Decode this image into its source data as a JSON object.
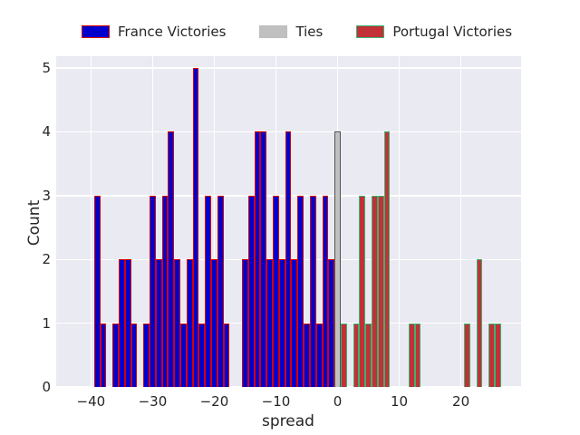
{
  "colors": {
    "figure_bg": "#ffffff",
    "axes_bg": "#eaeaf2",
    "grid": "#ffffff",
    "text": "#262626"
  },
  "legend": {
    "items": [
      {
        "label": "France Victories",
        "fill": "#0000cd",
        "edge": "#d60000"
      },
      {
        "label": "Ties",
        "fill": "#c0c0c0",
        "edge": "#bdbdbd"
      },
      {
        "label": "Portugal Victories",
        "fill": "#c13137",
        "edge": "#3cb371"
      }
    ]
  },
  "chart_data": {
    "type": "bar",
    "subtype": "histogram",
    "title": "",
    "xlabel": "spread",
    "ylabel": "Count",
    "bin_width": 1,
    "xlim": [
      -45.64,
      29.76
    ],
    "ylim": [
      0,
      5.186
    ],
    "grid": true,
    "legend_position": "top-center",
    "xticks": [
      {
        "v": -40,
        "label": "−40"
      },
      {
        "v": -30,
        "label": "−30"
      },
      {
        "v": -20,
        "label": "−20"
      },
      {
        "v": -10,
        "label": "−10"
      },
      {
        "v": 0,
        "label": "0"
      },
      {
        "v": 10,
        "label": "10"
      },
      {
        "v": 20,
        "label": "20"
      }
    ],
    "yticks": [
      {
        "v": 0,
        "label": "0"
      },
      {
        "v": 1,
        "label": "1"
      },
      {
        "v": 2,
        "label": "2"
      },
      {
        "v": 3,
        "label": "3"
      },
      {
        "v": 4,
        "label": "4"
      },
      {
        "v": 5,
        "label": "5"
      }
    ],
    "series": [
      {
        "name": "France Victories",
        "fill": "#0000cd",
        "edge": "#d60000",
        "bars": [
          [
            -39,
            3
          ],
          [
            -38,
            1
          ],
          [
            -36,
            1
          ],
          [
            -35,
            2
          ],
          [
            -34,
            2
          ],
          [
            -33,
            1
          ],
          [
            -31,
            1
          ],
          [
            -30,
            3
          ],
          [
            -29,
            2
          ],
          [
            -28,
            3
          ],
          [
            -27,
            4
          ],
          [
            -26,
            2
          ],
          [
            -25,
            1
          ],
          [
            -24,
            2
          ],
          [
            -23,
            5
          ],
          [
            -22,
            1
          ],
          [
            -21,
            3
          ],
          [
            -20,
            2
          ],
          [
            -19,
            3
          ],
          [
            -18,
            1
          ],
          [
            -15,
            2
          ],
          [
            -14,
            3
          ],
          [
            -13,
            4
          ],
          [
            -12,
            4
          ],
          [
            -11,
            2
          ],
          [
            -10,
            3
          ],
          [
            -9,
            2
          ],
          [
            -8,
            4
          ],
          [
            -7,
            2
          ],
          [
            -6,
            3
          ],
          [
            -5,
            1
          ],
          [
            -4,
            3
          ],
          [
            -3,
            1
          ],
          [
            -2,
            3
          ],
          [
            -1,
            2
          ]
        ]
      },
      {
        "name": "Ties",
        "fill": "#c0c0c0",
        "edge": "#545454",
        "bars": [
          [
            0,
            4
          ]
        ]
      },
      {
        "name": "Portugal Victories",
        "fill": "#c13137",
        "edge": "#3cb371",
        "bars": [
          [
            1,
            1
          ],
          [
            3,
            1
          ],
          [
            4,
            3
          ],
          [
            5,
            1
          ],
          [
            6,
            3
          ],
          [
            7,
            3
          ],
          [
            8,
            4
          ],
          [
            12,
            1
          ],
          [
            13,
            1
          ],
          [
            21,
            1
          ],
          [
            23,
            2
          ],
          [
            25,
            1
          ],
          [
            26,
            1
          ]
        ]
      }
    ]
  }
}
